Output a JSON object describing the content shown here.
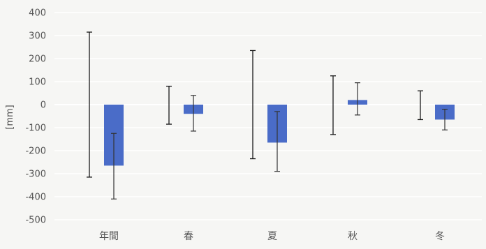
{
  "chart_data": {
    "type": "bar",
    "title": "",
    "xlabel": "",
    "ylabel": "[mm]",
    "ylim": [
      -500,
      400
    ],
    "y_ticks": [
      400,
      300,
      200,
      100,
      0,
      -100,
      -200,
      -300,
      -400,
      -500
    ],
    "grid": true,
    "legend": "none",
    "categories": [
      "年間",
      "春",
      "夏",
      "秋",
      "冬"
    ],
    "series": [
      {
        "type": "range",
        "values_low": [
          -315,
          -85,
          -235,
          -130,
          -65
        ],
        "values_high": [
          315,
          80,
          235,
          125,
          60
        ],
        "color": "#1a1a1a"
      },
      {
        "type": "bar",
        "values": [
          -265,
          -40,
          -165,
          20,
          -65
        ],
        "error_low": [
          -410,
          -115,
          -290,
          -45,
          -110
        ],
        "error_high": [
          -125,
          40,
          -30,
          95,
          -20
        ],
        "color": "#4a6cc8"
      }
    ]
  }
}
